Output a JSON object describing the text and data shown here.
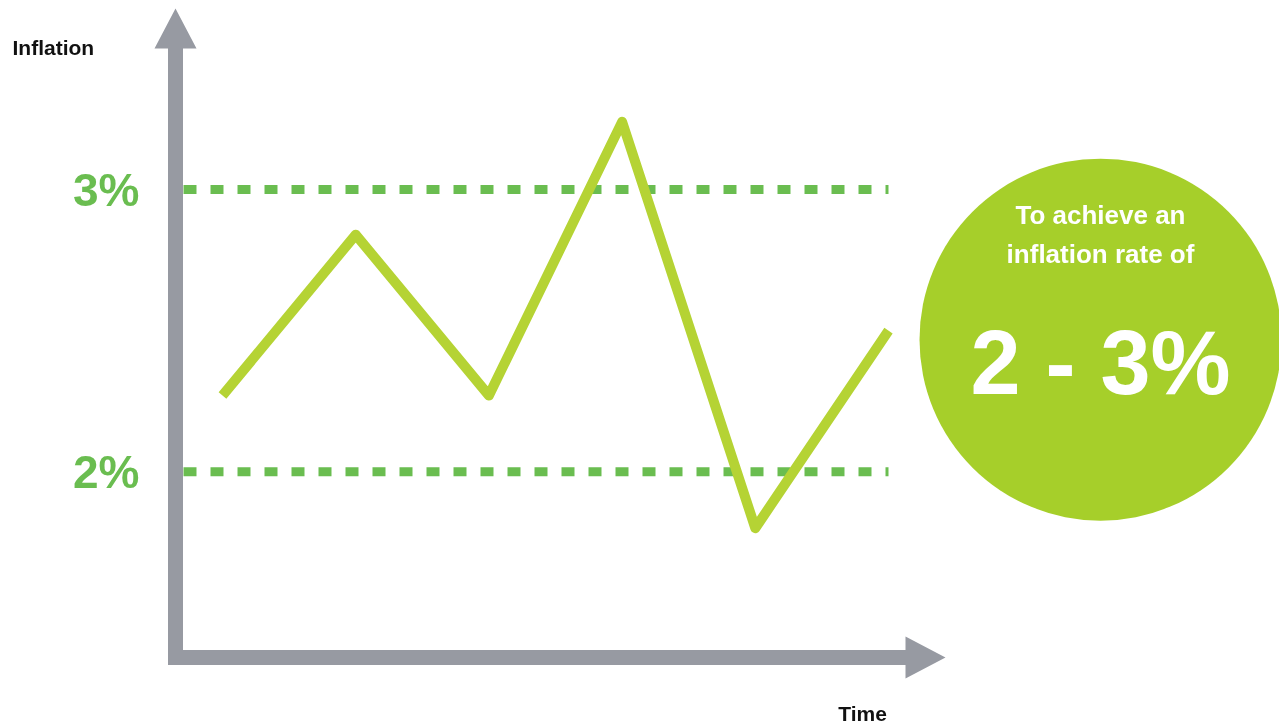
{
  "chart_data": {
    "type": "line",
    "xlabel": "Time",
    "ylabel": "Inflation",
    "categories": [
      null,
      null,
      null,
      null,
      null,
      null
    ],
    "series": [
      {
        "color": "#b5d334",
        "values": [
          2.27,
          2.84,
          2.27,
          3.24,
          1.8,
          2.5
        ]
      }
    ],
    "ylim": [
      1.09,
      3.67
    ],
    "yticks": [
      {
        "value": 2,
        "label": "2%"
      },
      {
        "value": 3,
        "label": "3%"
      }
    ],
    "ref_lines": [
      {
        "axis": "y",
        "value": 3,
        "color": "#6abd50",
        "line_style": "dashed"
      },
      {
        "axis": "y",
        "value": 2,
        "color": "#6abd50",
        "line_style": "dashed"
      }
    ],
    "annotations": [
      "To achieve an\ninflation rate of",
      "2 - 3%"
    ],
    "tick_labels": "y",
    "grid": false,
    "marker": "none",
    "line_style": "solid"
  }
}
